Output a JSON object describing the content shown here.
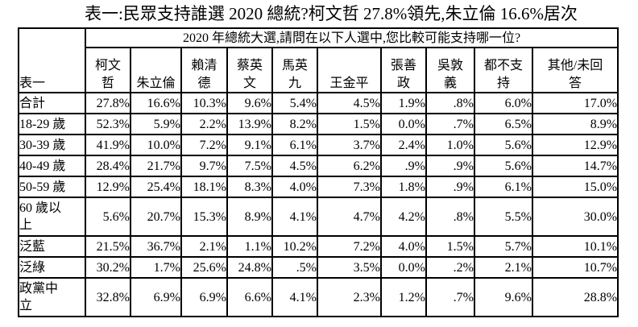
{
  "title": "表一:民眾支持誰選 2020 總統?柯文哲 27.8%領先,朱立倫 16.6%居次",
  "table": {
    "corner_label": "表一",
    "question": "2020 年總統大選,請問在以下人選中,您比較可能支持哪一位?",
    "columns": [
      "柯文\n哲",
      "朱立倫",
      "賴清\n德",
      "蔡英\n文",
      "馬英\n九",
      "王金平",
      "張善\n政",
      "吳敦\n義",
      "都不支\n持",
      "其他/未回\n答"
    ],
    "rows": [
      {
        "label": "合計",
        "values": [
          "27.8%",
          "16.6%",
          "10.3%",
          "9.6%",
          "5.4%",
          "4.5%",
          "1.9%",
          ".8%",
          "6.0%",
          "17.0%"
        ]
      },
      {
        "label": "18-29 歲",
        "values": [
          "52.3%",
          "5.9%",
          "2.2%",
          "13.9%",
          "8.2%",
          "1.5%",
          "0.0%",
          ".7%",
          "6.5%",
          "8.9%"
        ]
      },
      {
        "label": "30-39 歲",
        "values": [
          "41.9%",
          "10.0%",
          "7.2%",
          "9.1%",
          "6.1%",
          "3.7%",
          "2.4%",
          "1.0%",
          "5.6%",
          "12.9%"
        ]
      },
      {
        "label": "40-49 歲",
        "values": [
          "28.4%",
          "21.7%",
          "9.7%",
          "7.5%",
          "4.5%",
          "6.2%",
          ".9%",
          ".9%",
          "5.6%",
          "14.7%"
        ]
      },
      {
        "label": "50-59 歲",
        "values": [
          "12.9%",
          "25.4%",
          "18.1%",
          "8.3%",
          "4.0%",
          "7.3%",
          "1.8%",
          ".9%",
          "6.1%",
          "15.0%"
        ]
      },
      {
        "label": "60 歲以\n上",
        "values": [
          "5.6%",
          "20.7%",
          "15.3%",
          "8.9%",
          "4.1%",
          "4.7%",
          "4.2%",
          ".8%",
          "5.5%",
          "30.0%"
        ]
      },
      {
        "label": "泛藍",
        "values": [
          "21.5%",
          "36.7%",
          "2.1%",
          "1.1%",
          "10.2%",
          "7.2%",
          "4.0%",
          "1.5%",
          "5.7%",
          "10.1%"
        ]
      },
      {
        "label": "泛綠",
        "values": [
          "30.2%",
          "1.7%",
          "25.6%",
          "24.8%",
          ".5%",
          "3.5%",
          "0.0%",
          ".2%",
          "2.1%",
          "10.7%"
        ]
      },
      {
        "label": "政黨中\n立",
        "values": [
          "32.8%",
          "6.9%",
          "6.9%",
          "6.6%",
          "4.1%",
          "2.3%",
          "1.2%",
          ".7%",
          "9.6%",
          "28.8%"
        ]
      }
    ]
  }
}
